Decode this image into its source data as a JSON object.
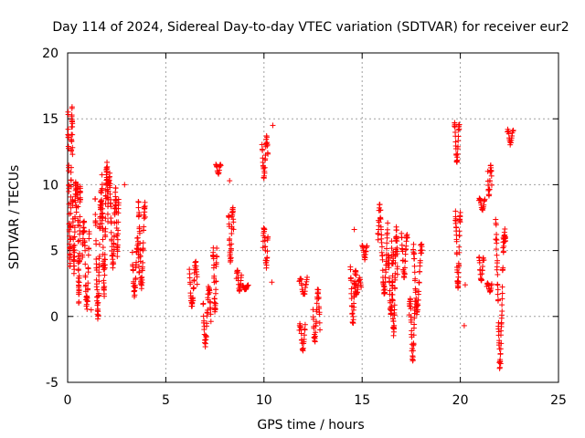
{
  "chart_data": {
    "type": "scatter",
    "title": "Day 114 of 2024, Sidereal Day-to-day VTEC variation (SDTVAR) for receiver eur2",
    "xlabel": "GPS time / hours",
    "ylabel": "SDTVAR / TECUs",
    "xlim": [
      0,
      25
    ],
    "ylim": [
      -5,
      20
    ],
    "xticks": [
      0,
      5,
      10,
      15,
      20,
      25
    ],
    "yticks": [
      -5,
      0,
      5,
      10,
      15,
      20
    ],
    "xtick_labels": [
      "0",
      "5",
      "10",
      "15",
      "20",
      "25"
    ],
    "ytick_labels": [
      "-5",
      "0",
      "5",
      "10",
      "15",
      "20"
    ],
    "grid": true,
    "marker": "+",
    "color": "#ff0000",
    "legend": "none",
    "series": [
      {
        "name": "SDTVAR",
        "tracks": [
          [
            0.02,
            0.25,
            3.5,
            16.0
          ],
          [
            0.25,
            0.45,
            3.2,
            10.5
          ],
          [
            0.5,
            0.65,
            0.8,
            10.5
          ],
          [
            0.75,
            1.1,
            0.5,
            7.5
          ],
          [
            1.4,
            1.75,
            -0.5,
            9.8
          ],
          [
            1.75,
            2.05,
            1.5,
            12.2
          ],
          [
            2.05,
            2.45,
            3.5,
            11.2
          ],
          [
            2.45,
            2.6,
            4.5,
            9.0
          ],
          [
            3.3,
            3.65,
            1.5,
            6.0
          ],
          [
            3.6,
            3.95,
            2.0,
            8.8
          ],
          [
            6.2,
            6.6,
            0.5,
            4.3
          ],
          [
            6.9,
            7.3,
            -2.3,
            2.5
          ],
          [
            7.4,
            7.6,
            0.0,
            5.2
          ],
          [
            7.55,
            7.8,
            10.8,
            11.6
          ],
          [
            8.2,
            8.45,
            4.0,
            8.5
          ],
          [
            8.6,
            8.85,
            1.8,
            3.5
          ],
          [
            8.9,
            9.2,
            2.0,
            2.4
          ],
          [
            9.9,
            10.2,
            10.5,
            13.7
          ],
          [
            9.95,
            10.2,
            3.6,
            7.0
          ],
          [
            11.8,
            12.1,
            -2.6,
            -0.5
          ],
          [
            11.8,
            12.2,
            1.5,
            3.0
          ],
          [
            12.5,
            12.85,
            -2.0,
            2.2
          ],
          [
            14.4,
            14.7,
            -0.7,
            3.8
          ],
          [
            14.6,
            14.95,
            1.5,
            3.0
          ],
          [
            15.0,
            15.25,
            4.3,
            5.5
          ],
          [
            15.8,
            16.3,
            1.5,
            8.5
          ],
          [
            16.3,
            16.6,
            -0.3,
            5.0
          ],
          [
            16.5,
            16.8,
            -1.7,
            6.8
          ],
          [
            17.0,
            17.3,
            2.8,
            6.3
          ],
          [
            17.4,
            17.7,
            -3.5,
            1.5
          ],
          [
            17.6,
            18.05,
            0.0,
            5.6
          ],
          [
            19.7,
            19.95,
            11.5,
            14.7
          ],
          [
            19.75,
            20.0,
            1.5,
            8.0
          ],
          [
            20.95,
            21.2,
            2.5,
            4.6
          ],
          [
            20.95,
            21.25,
            8.0,
            9.0
          ],
          [
            21.4,
            21.6,
            9.0,
            11.6
          ],
          [
            21.35,
            21.6,
            1.8,
            2.6
          ],
          [
            21.8,
            22.3,
            -4.0,
            7.5
          ],
          [
            22.4,
            22.7,
            13.0,
            14.2
          ]
        ],
        "points": [
          [
            10.45,
            14.5
          ],
          [
            10.4,
            2.6
          ],
          [
            14.6,
            6.6
          ],
          [
            8.25,
            10.3
          ],
          [
            20.2,
            -0.7
          ],
          [
            20.25,
            2.4
          ],
          [
            1.2,
            0.5
          ],
          [
            2.9,
            10.0
          ]
        ]
      }
    ]
  }
}
